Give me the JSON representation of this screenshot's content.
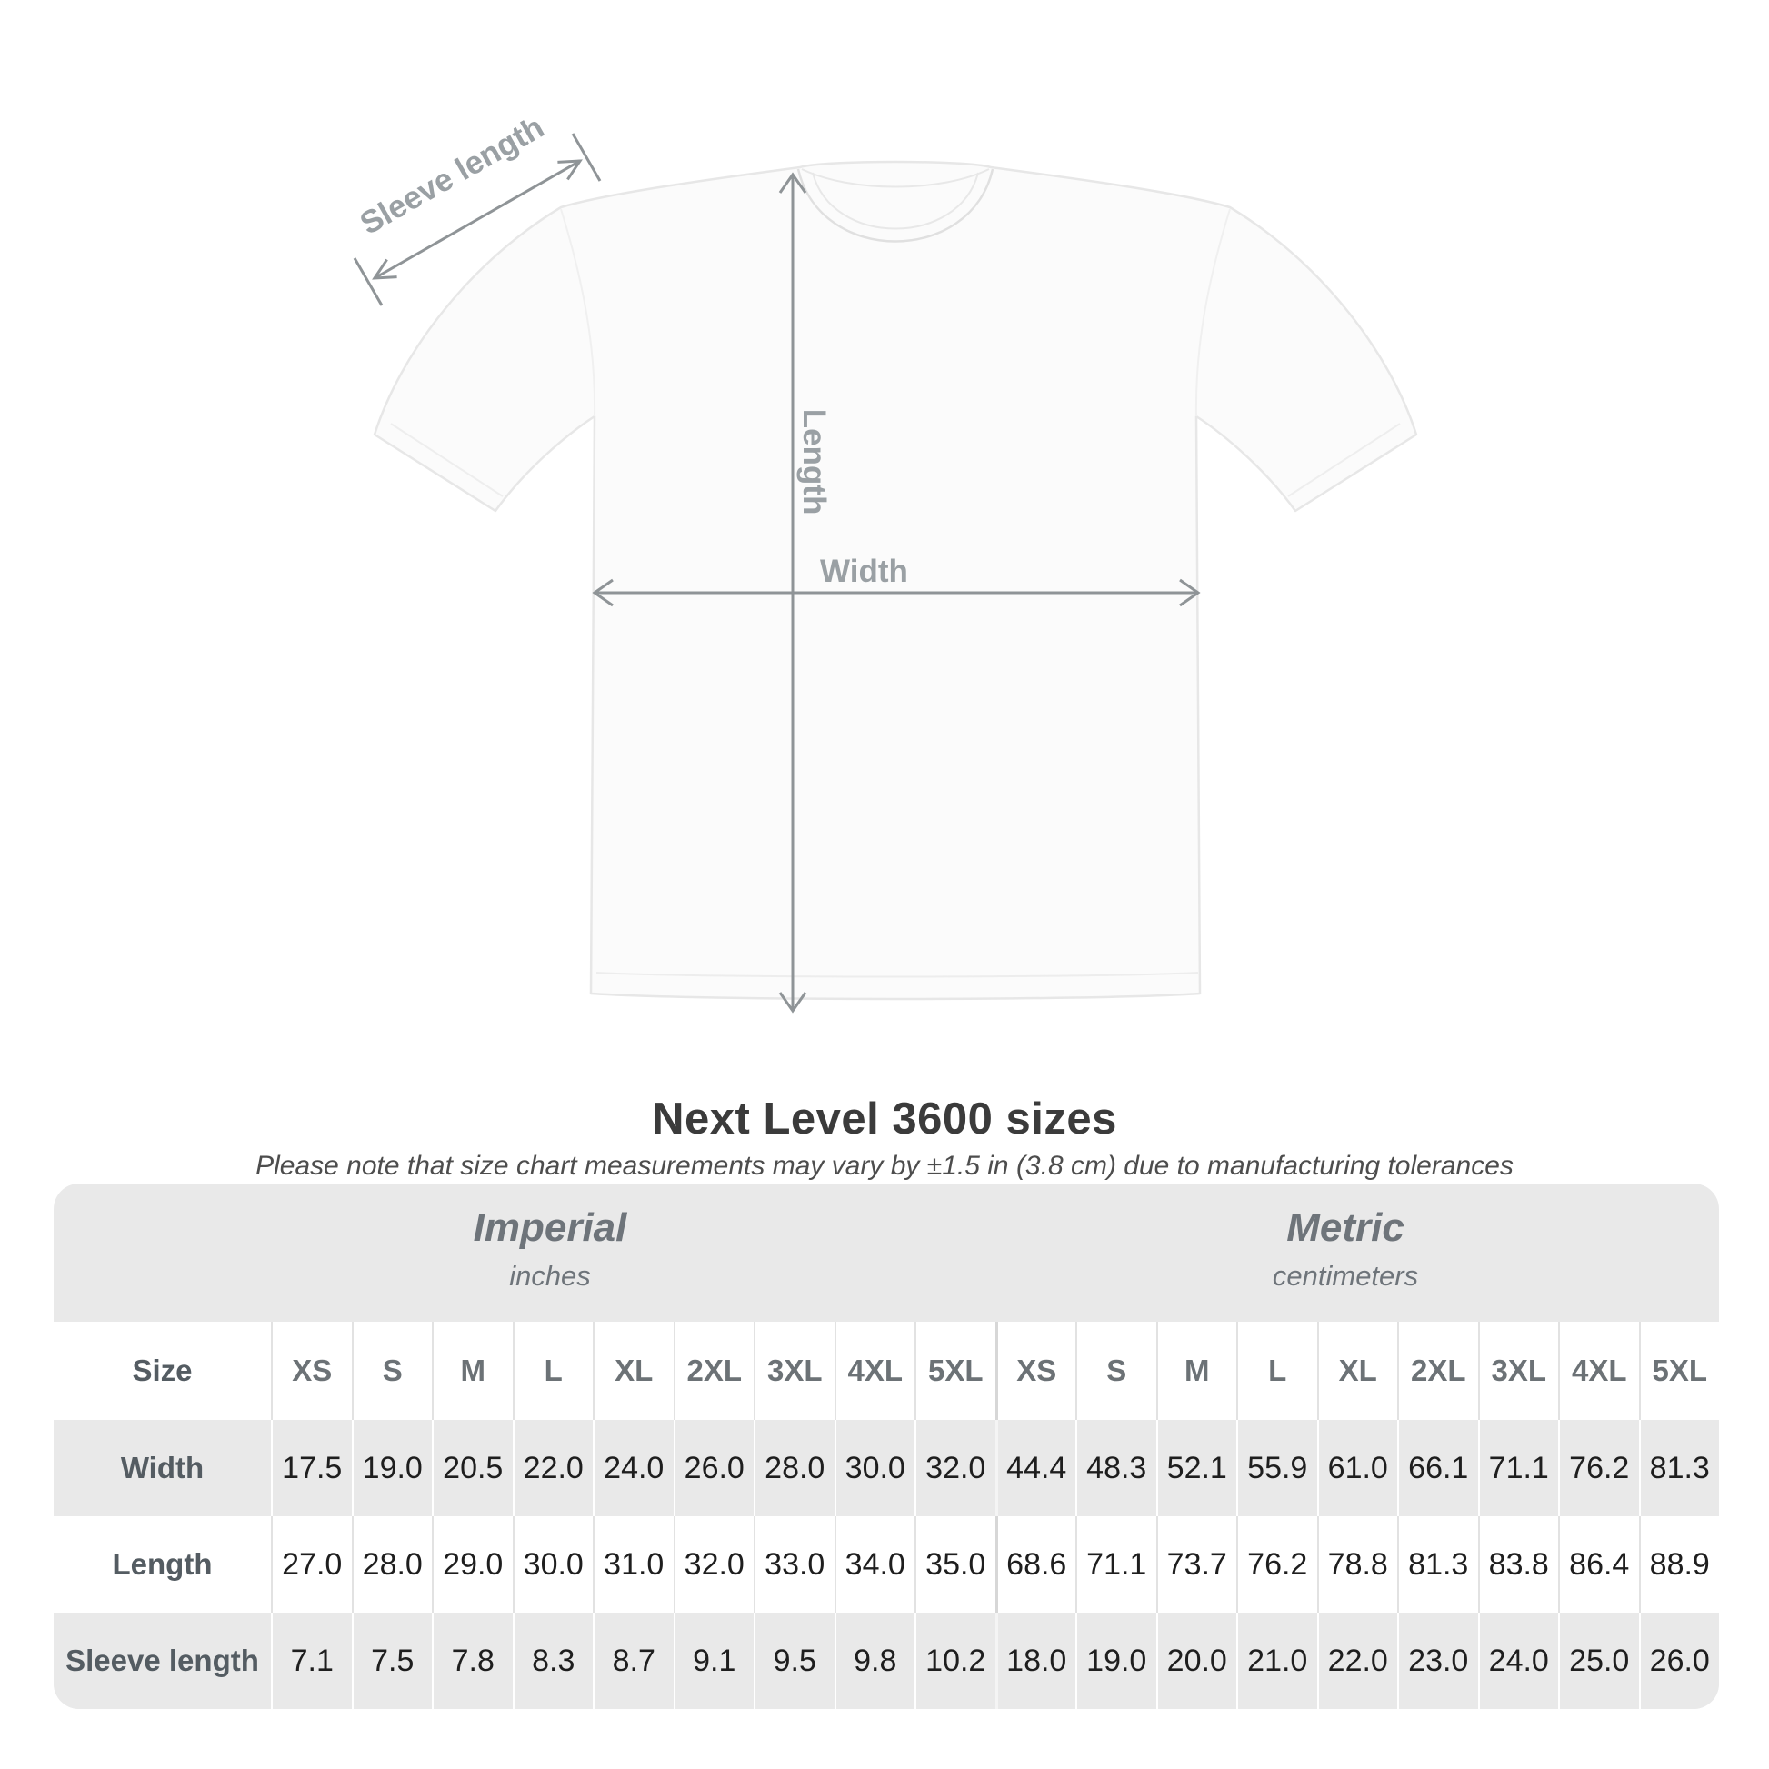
{
  "title": "Next Level 3600 sizes",
  "subtitle": "Please note that size chart measurements may vary by ±1.5 in (3.8 cm) due to manufacturing tolerances",
  "diagram": {
    "sleeve_length_label": "Sleeve length",
    "length_label": "Length",
    "width_label": "Width"
  },
  "table": {
    "corner_label": "Size",
    "sections": [
      {
        "name": "Imperial",
        "unit": "inches"
      },
      {
        "name": "Metric",
        "unit": "centimeters"
      }
    ],
    "sizes": [
      "XS",
      "S",
      "M",
      "L",
      "XL",
      "2XL",
      "3XL",
      "4XL",
      "5XL"
    ],
    "rows": [
      {
        "label": "Width",
        "imperial": [
          "17.5",
          "19.0",
          "20.5",
          "22.0",
          "24.0",
          "26.0",
          "28.0",
          "30.0",
          "32.0"
        ],
        "metric": [
          "44.4",
          "48.3",
          "52.1",
          "55.9",
          "61.0",
          "66.1",
          "71.1",
          "76.2",
          "81.3"
        ]
      },
      {
        "label": "Length",
        "imperial": [
          "27.0",
          "28.0",
          "29.0",
          "30.0",
          "31.0",
          "32.0",
          "33.0",
          "34.0",
          "35.0"
        ],
        "metric": [
          "68.6",
          "71.1",
          "73.7",
          "76.2",
          "78.8",
          "81.3",
          "83.8",
          "86.4",
          "88.9"
        ]
      },
      {
        "label": "Sleeve length",
        "imperial": [
          "7.1",
          "7.5",
          "7.8",
          "8.3",
          "8.7",
          "9.1",
          "9.5",
          "9.8",
          "10.2"
        ],
        "metric": [
          "18.0",
          "19.0",
          "20.0",
          "21.0",
          "22.0",
          "23.0",
          "24.0",
          "25.0",
          "26.0"
        ]
      }
    ]
  },
  "colors": {
    "panel_gray": "#e9e9e9",
    "annotation_line": "#8f9497",
    "annotation_label": "#9aa0a4",
    "row_label_text": "#545c62",
    "size_header_text": "#6c7276",
    "value_text": "#1e1e1e",
    "title_text": "#3b3b3b",
    "subtitle_text": "#4d4d4d"
  }
}
